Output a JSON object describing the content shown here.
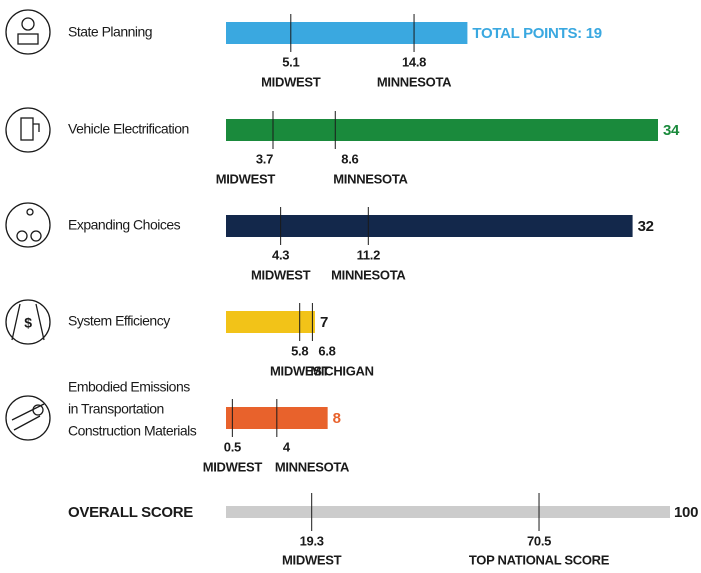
{
  "chart_data": {
    "type": "bar",
    "xlim": [
      0,
      34
    ],
    "rows": [
      {
        "label": [
          "State Planning"
        ],
        "total": 19,
        "value_label": "TOTAL POINTS: 19",
        "color": "#3aa8e0",
        "markers": [
          {
            "value": 5.1,
            "name": "MIDWEST"
          },
          {
            "value": 14.8,
            "name": "MINNESOTA"
          }
        ]
      },
      {
        "label": [
          "Vehicle Electrification"
        ],
        "total": 34,
        "color": "#1a8a3c",
        "markers": [
          {
            "value": 3.7,
            "name": "MIDWEST"
          },
          {
            "value": 8.6,
            "name": "MINNESOTA"
          }
        ]
      },
      {
        "label": [
          "Expanding Choices"
        ],
        "total": 32,
        "color": "#13284b",
        "markers": [
          {
            "value": 4.3,
            "name": "MIDWEST"
          },
          {
            "value": 11.2,
            "name": "MINNESOTA"
          }
        ]
      },
      {
        "label": [
          "System Efficiency"
        ],
        "total": 7,
        "color": "#f2c318",
        "markers": [
          {
            "value": 5.8,
            "name": "MIDWEST"
          },
          {
            "value": 6.8,
            "name": "MICHIGAN"
          }
        ]
      },
      {
        "label": [
          "Embodied Emissions",
          "in Transportation",
          "Construction Materials"
        ],
        "total": 8,
        "color": "#e8622c",
        "markers": [
          {
            "value": 0.5,
            "name": "MIDWEST"
          },
          {
            "value": 4,
            "name": "MINNESOTA"
          }
        ]
      }
    ],
    "overall": {
      "label": "OVERALL SCORE",
      "total": 100,
      "xlim": [
        0,
        100
      ],
      "color": "#cccccc",
      "markers": [
        {
          "value": 19.3,
          "name": "MIDWEST"
        },
        {
          "value": 70.5,
          "name": "TOP NATIONAL SCORE"
        }
      ]
    }
  }
}
